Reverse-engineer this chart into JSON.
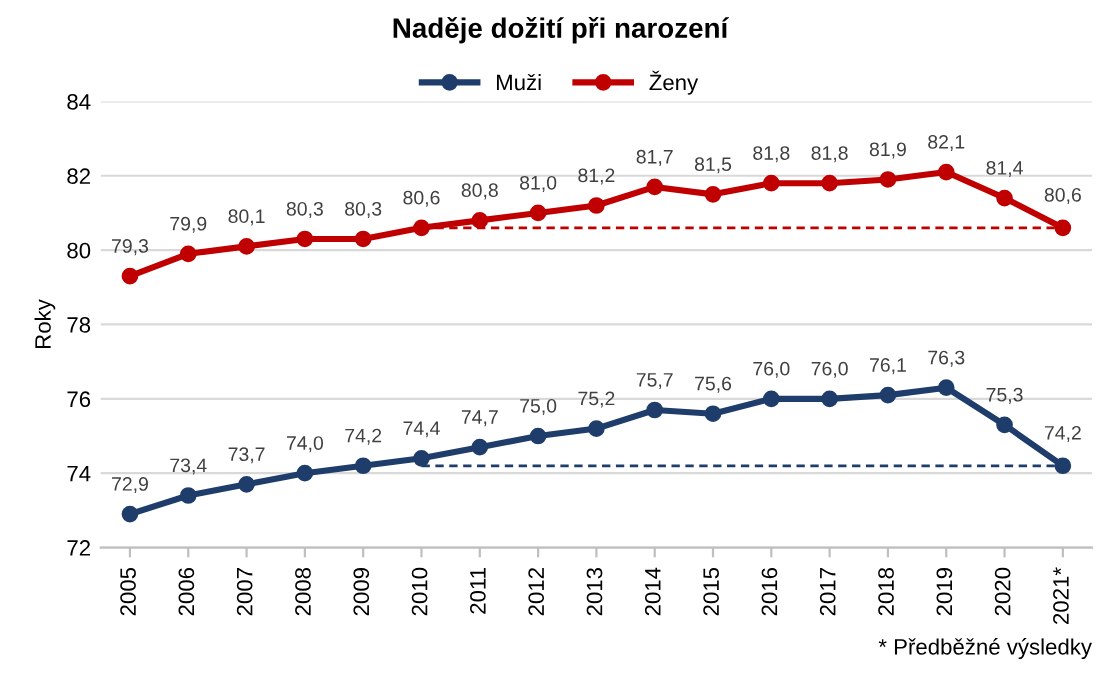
{
  "chart_data": {
    "type": "line",
    "title": "Naděje dožití při narození",
    "ylabel": "Roky",
    "categories": [
      "2005",
      "2006",
      "2007",
      "2008",
      "2009",
      "2010",
      "2011",
      "2012",
      "2013",
      "2014",
      "2015",
      "2016",
      "2017",
      "2018",
      "2019",
      "2020",
      "2021*"
    ],
    "series": [
      {
        "name": "Muži",
        "color": "#1f3d6b",
        "marker": "circle",
        "values": [
          72.9,
          73.4,
          73.7,
          74.0,
          74.2,
          74.4,
          74.7,
          75.0,
          75.2,
          75.7,
          75.6,
          76.0,
          76.0,
          76.1,
          76.3,
          75.3,
          74.2
        ],
        "value_labels": [
          "72,9",
          "73,4",
          "73,7",
          "74,0",
          "74,2",
          "74,4",
          "74,7",
          "75,0",
          "75,2",
          "75,7",
          "75,6",
          "76,0",
          "76,0",
          "76,1",
          "76,3",
          "75,3",
          "74,2"
        ]
      },
      {
        "name": "Ženy",
        "color": "#c00000",
        "marker": "circle",
        "values": [
          79.3,
          79.9,
          80.1,
          80.3,
          80.3,
          80.6,
          80.8,
          81.0,
          81.2,
          81.7,
          81.5,
          81.8,
          81.8,
          81.9,
          82.1,
          81.4,
          80.6
        ],
        "value_labels": [
          "79,3",
          "79,9",
          "80,1",
          "80,3",
          "80,3",
          "80,6",
          "80,8",
          "81,0",
          "81,2",
          "81,7",
          "81,5",
          "81,8",
          "81,8",
          "81,9",
          "82,1",
          "81,4",
          "80,6"
        ]
      },
      {
        "color": "#1f3d6b",
        "line_style": "dashed",
        "marker": "none",
        "values": [
          null,
          null,
          null,
          null,
          null,
          74.2,
          74.2,
          74.2,
          74.2,
          74.2,
          74.2,
          74.2,
          74.2,
          74.2,
          74.2,
          74.2,
          74.2
        ]
      },
      {
        "color": "#c00000",
        "line_style": "dashed",
        "marker": "none",
        "values": [
          null,
          null,
          null,
          null,
          null,
          80.6,
          80.6,
          80.6,
          80.6,
          80.6,
          80.6,
          80.6,
          80.6,
          80.6,
          80.6,
          80.6,
          80.6
        ]
      }
    ],
    "ylim": [
      72,
      84
    ],
    "yticks": [
      72,
      74,
      76,
      78,
      80,
      82,
      84
    ],
    "grid": "y",
    "legend": "top",
    "annotations": [
      "* Předběžné výsledky"
    ]
  }
}
